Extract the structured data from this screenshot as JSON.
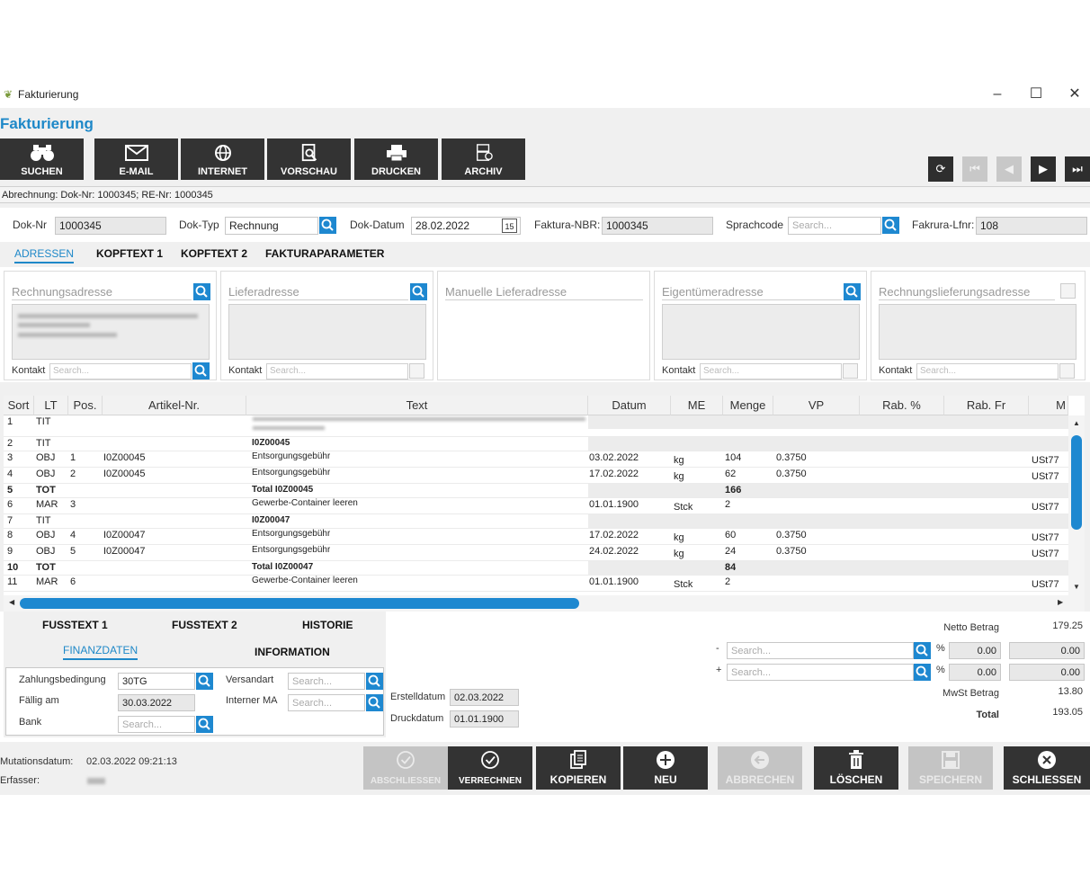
{
  "window": {
    "title": "Fakturierung",
    "app_title": "Fakturierung"
  },
  "toolbar": [
    {
      "label": "SUCHEN",
      "icon": "binoculars-icon"
    },
    {
      "label": "E-MAIL",
      "icon": "mail-icon"
    },
    {
      "label": "INTERNET",
      "icon": "globe-icon"
    },
    {
      "label": "VORSCHAU",
      "icon": "preview-icon"
    },
    {
      "label": "DRUCKEN",
      "icon": "printer-icon"
    },
    {
      "label": "ARCHIV",
      "icon": "archive-icon"
    }
  ],
  "abrechnung": "Abrechnung: Dok-Nr: 1000345; RE-Nr: 1000345",
  "form": {
    "dok_nr_label": "Dok-Nr",
    "dok_nr": "1000345",
    "dok_typ_label": "Dok-Typ",
    "dok_typ": "Rechnung",
    "dok_datum_label": "Dok-Datum",
    "dok_datum": "28.02.2022",
    "calendar_day": "15",
    "faktura_nbr_label": "Faktura-NBR:",
    "faktura_nbr": "1000345",
    "sprachcode_label": "Sprachcode",
    "sprachcode_placeholder": "Search...",
    "faktura_lfnr_label": "Fakrura-Lfnr:",
    "faktura_lfnr": "108"
  },
  "tabs": [
    "ADRESSEN",
    "KOPFTEXT 1",
    "KOPFTEXT 2",
    "FAKTURAPARAMETER"
  ],
  "addresses": [
    {
      "title": "Rechnungsadresse",
      "kontakt": "Kontakt",
      "placeholder": "Search..."
    },
    {
      "title": "Lieferadresse",
      "kontakt": "Kontakt",
      "placeholder": "Search..."
    },
    {
      "title": "Manuelle Lieferadresse"
    },
    {
      "title": "Eigentümeradresse",
      "kontakt": "Kontakt",
      "placeholder": "Search..."
    },
    {
      "title": "Rechnungslieferungsadresse",
      "kontakt": "Kontakt",
      "placeholder": "Search..."
    }
  ],
  "grid": {
    "headers": [
      "Sort",
      "LT",
      "Pos.",
      "Artikel-Nr.",
      "Text",
      "Datum",
      "ME",
      "Menge",
      "VP",
      "Rab. %",
      "Rab. Fr",
      "M"
    ],
    "rows": [
      {
        "sort": "1",
        "lt": "TIT",
        "pos": "",
        "art": "",
        "text": "",
        "datum": "",
        "me": "",
        "menge": "",
        "vp": "",
        "m": "",
        "type": "tit",
        "blur": true
      },
      {
        "sort": "2",
        "lt": "TIT",
        "pos": "",
        "art": "",
        "text": "I0Z00045",
        "datum": "",
        "me": "",
        "menge": "",
        "vp": "",
        "m": "",
        "type": "tit"
      },
      {
        "sort": "3",
        "lt": "OBJ",
        "pos": "1",
        "art": "I0Z00045",
        "text": "Entsorgungsgebühr",
        "datum": "03.02.2022",
        "me": "kg",
        "menge": "104",
        "vp": "0.3750",
        "m": "USt77",
        "type": "obj"
      },
      {
        "sort": "4",
        "lt": "OBJ",
        "pos": "2",
        "art": "I0Z00045",
        "text": "Entsorgungsgebühr",
        "datum": "17.02.2022",
        "me": "kg",
        "menge": "62",
        "vp": "0.3750",
        "m": "USt77",
        "type": "obj"
      },
      {
        "sort": "5",
        "lt": "TOT",
        "pos": "",
        "art": "",
        "text": "Total I0Z00045",
        "datum": "",
        "me": "",
        "menge": "166",
        "vp": "",
        "m": "",
        "type": "tot"
      },
      {
        "sort": "6",
        "lt": "MAR",
        "pos": "3",
        "art": "",
        "text": "Gewerbe-Container leeren",
        "datum": "01.01.1900",
        "me": "Stck",
        "menge": "2",
        "vp": "",
        "m": "USt77",
        "type": "obj"
      },
      {
        "sort": "7",
        "lt": "TIT",
        "pos": "",
        "art": "",
        "text": "I0Z00047",
        "datum": "",
        "me": "",
        "menge": "",
        "vp": "",
        "m": "",
        "type": "tit"
      },
      {
        "sort": "8",
        "lt": "OBJ",
        "pos": "4",
        "art": "I0Z00047",
        "text": "Entsorgungsgebühr",
        "datum": "17.02.2022",
        "me": "kg",
        "menge": "60",
        "vp": "0.3750",
        "m": "USt77",
        "type": "obj"
      },
      {
        "sort": "9",
        "lt": "OBJ",
        "pos": "5",
        "art": "I0Z00047",
        "text": "Entsorgungsgebühr",
        "datum": "24.02.2022",
        "me": "kg",
        "menge": "24",
        "vp": "0.3750",
        "m": "USt77",
        "type": "obj"
      },
      {
        "sort": "10",
        "lt": "TOT",
        "pos": "",
        "art": "",
        "text": "Total I0Z00047",
        "datum": "",
        "me": "",
        "menge": "84",
        "vp": "",
        "m": "",
        "type": "tot"
      },
      {
        "sort": "11",
        "lt": "MAR",
        "pos": "6",
        "art": "",
        "text": "Gewerbe-Container leeren",
        "datum": "01.01.1900",
        "me": "Stck",
        "menge": "2",
        "vp": "",
        "m": "USt77",
        "type": "obj"
      }
    ]
  },
  "bottom_tabs": {
    "fusstext1": "FUSSTEXT 1",
    "fusstext2": "FUSSTEXT 2",
    "historie": "HISTORIE",
    "finanzdaten": "FINANZDATEN",
    "information": "INFORMATION"
  },
  "finanz": {
    "zahlungsbedingung_label": "Zahlungsbedingung",
    "zahlungsbedingung": "30TG",
    "versandart_label": "Versandart",
    "versandart_placeholder": "Search...",
    "faellig_label": "Fällig am",
    "faellig": "30.03.2022",
    "interner_ma_label": "Interner MA",
    "interner_ma_placeholder": "Search...",
    "bank_label": "Bank",
    "bank_placeholder": "Search..."
  },
  "dates": {
    "erstell_label": "Erstelldatum",
    "erstell": "02.03.2022",
    "druck_label": "Druckdatum",
    "druck": "01.01.1900"
  },
  "totals": {
    "netto_label": "Netto Betrag",
    "netto": "179.25",
    "minus_sign": "-",
    "plus_sign": "+",
    "pct": "%",
    "placeholder": "Search...",
    "minus_pct": "0.00",
    "minus_val": "0.00",
    "plus_pct": "0.00",
    "plus_val": "0.00",
    "mwst_label": "MwSt Betrag",
    "mwst": "13.80",
    "total_label": "Total",
    "total": "193.05"
  },
  "footer": {
    "mutation_label": "Mutationsdatum:",
    "mutation": "02.03.2022 09:21:13",
    "erfasser_label": "Erfasser:",
    "buttons": [
      {
        "label": "ABSCHLIESSEN",
        "enabled": false
      },
      {
        "label": "VERRECHNEN",
        "enabled": true
      },
      {
        "label": "KOPIEREN",
        "enabled": true
      },
      {
        "label": "NEU",
        "enabled": true
      },
      {
        "label": "ABBRECHEN",
        "enabled": false
      },
      {
        "label": "LÖSCHEN",
        "enabled": true
      },
      {
        "label": "SPEICHERN",
        "enabled": false
      },
      {
        "label": "SCHLIESSEN",
        "enabled": true
      }
    ]
  },
  "colors": {
    "accent": "#1e88c8",
    "button_dark": "#333333",
    "button_disabled": "#c4c4c4"
  }
}
